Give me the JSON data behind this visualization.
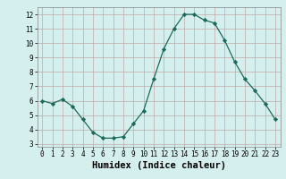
{
  "x": [
    0,
    1,
    2,
    3,
    4,
    5,
    6,
    7,
    8,
    9,
    10,
    11,
    12,
    13,
    14,
    15,
    16,
    17,
    18,
    19,
    20,
    21,
    22,
    23
  ],
  "y": [
    6.0,
    5.8,
    6.1,
    5.6,
    4.7,
    3.8,
    3.4,
    3.4,
    3.5,
    4.4,
    5.3,
    7.5,
    9.6,
    11.0,
    12.0,
    12.0,
    11.6,
    11.4,
    10.2,
    8.7,
    7.5,
    6.7,
    5.8,
    4.7
  ],
  "line_color": "#1a6b5a",
  "marker": "D",
  "marker_size": 2.2,
  "bg_color": "#d5eeee",
  "grid_color": "#c0a8a8",
  "xlabel": "Humidex (Indice chaleur)",
  "xlim": [
    -0.5,
    23.5
  ],
  "ylim": [
    2.8,
    12.5
  ],
  "yticks": [
    3,
    4,
    5,
    6,
    7,
    8,
    9,
    10,
    11,
    12
  ],
  "xticks": [
    0,
    1,
    2,
    3,
    4,
    5,
    6,
    7,
    8,
    9,
    10,
    11,
    12,
    13,
    14,
    15,
    16,
    17,
    18,
    19,
    20,
    21,
    22,
    23
  ],
  "tick_fontsize": 5.5,
  "xlabel_fontsize": 7.5
}
